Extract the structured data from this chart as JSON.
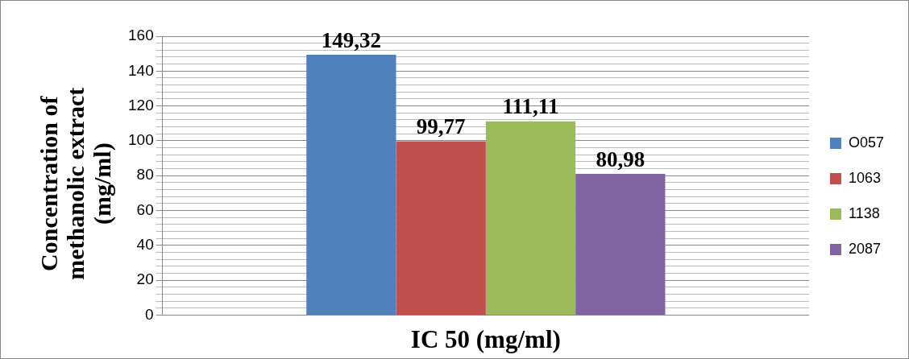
{
  "chart_data": {
    "type": "bar",
    "xlabel": "IC 50 (mg/ml)",
    "ylabel": "Concentration of methanolic extract (mg/ml)",
    "categories": [
      null
    ],
    "series": [
      {
        "name": "O057",
        "color": "#4f81bd",
        "values": [
          149.32
        ],
        "value_labels": [
          "149,32"
        ]
      },
      {
        "name": "1063",
        "color": "#c0504d",
        "values": [
          99.77
        ],
        "value_labels": [
          "99,77"
        ]
      },
      {
        "name": "1138",
        "color": "#9bbb59",
        "values": [
          111.11
        ],
        "value_labels": [
          "111,11"
        ]
      },
      {
        "name": "2087",
        "color": "#8064a2",
        "values": [
          80.98
        ],
        "value_labels": [
          "80,98"
        ]
      }
    ],
    "ylim": [
      0,
      160
    ],
    "yticks": [
      0,
      {
        "value": 4,
        "label": null
      },
      {
        "value": 8,
        "label": null
      },
      {
        "value": 12,
        "label": null
      },
      {
        "value": 16,
        "label": null
      },
      20,
      {
        "value": 24,
        "label": null
      },
      {
        "value": 28,
        "label": null
      },
      {
        "value": 32,
        "label": null
      },
      {
        "value": 36,
        "label": null
      },
      40,
      {
        "value": 44,
        "label": null
      },
      {
        "value": 48,
        "label": null
      },
      {
        "value": 52,
        "label": null
      },
      {
        "value": 56,
        "label": null
      },
      60,
      {
        "value": 64,
        "label": null
      },
      {
        "value": 68,
        "label": null
      },
      {
        "value": 72,
        "label": null
      },
      {
        "value": 76,
        "label": null
      },
      80,
      {
        "value": 84,
        "label": null
      },
      {
        "value": 88,
        "label": null
      },
      {
        "value": 92,
        "label": null
      },
      {
        "value": 96,
        "label": null
      },
      100,
      {
        "value": 104,
        "label": null
      },
      {
        "value": 108,
        "label": null
      },
      {
        "value": 112,
        "label": null
      },
      {
        "value": 116,
        "label": null
      },
      120,
      {
        "value": 124,
        "label": null
      },
      {
        "value": 128,
        "label": null
      },
      {
        "value": 132,
        "label": null
      },
      {
        "value": 136,
        "label": null
      },
      140,
      {
        "value": 144,
        "label": null
      },
      {
        "value": 148,
        "label": null
      },
      {
        "value": 152,
        "label": null
      },
      {
        "value": 156,
        "label": null
      },
      160
    ],
    "grid": "y",
    "legend": "right"
  }
}
